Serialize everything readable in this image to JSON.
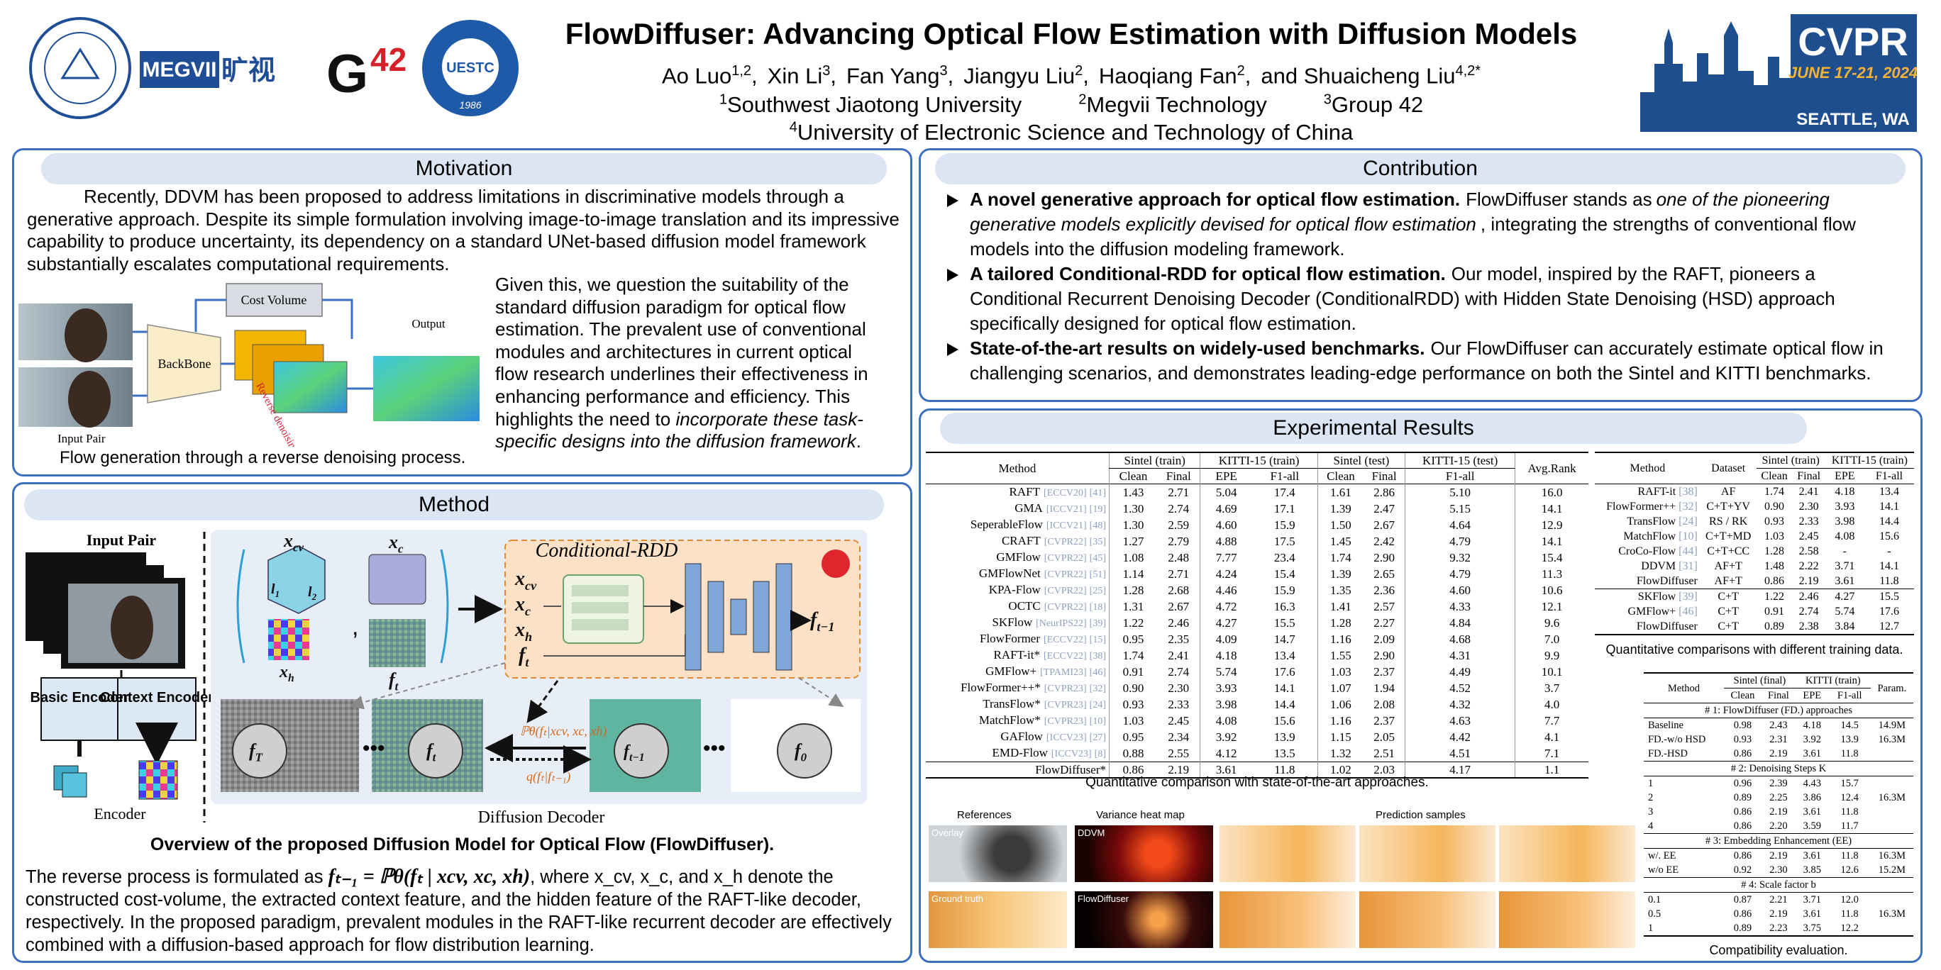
{
  "header": {
    "title": "FlowDiffuser: Advancing Optical Flow Estimation with Diffusion Models",
    "authors": [
      {
        "name": "Ao Luo",
        "sup": "1,2",
        "sep": ","
      },
      {
        "name": "Xin Li",
        "sup": "3",
        "sep": ","
      },
      {
        "name": "Fan Yang",
        "sup": "3",
        "sep": ","
      },
      {
        "name": "Jiangyu Liu",
        "sup": "2",
        "sep": ","
      },
      {
        "name": "Haoqiang Fan",
        "sup": "2",
        "sep": ","
      },
      {
        "name": "and Shuaicheng Liu",
        "sup": "4,2*"
      }
    ],
    "affiliations": [
      {
        "sup": "1",
        "name": "Southwest Jiaotong University"
      },
      {
        "sup": "2",
        "name": "Megvii Technology"
      },
      {
        "sup": "3",
        "name": "Group 42"
      },
      {
        "sup": "4",
        "name": "University of Electronic Science and Technology of China"
      }
    ],
    "logos": {
      "megvii": "MEGVII",
      "megvii_cn": "旷视",
      "g42_g": "G",
      "g42_num": "42",
      "uestc": "UESTC",
      "uestc_year": "1986",
      "cvpr": "CVPR",
      "cvpr_date": "JUNE 17-21, 2024",
      "cvpr_place": "SEATTLE, WA"
    }
  },
  "motivation": {
    "title": "Motivation",
    "para1": "Recently, DDVM has been proposed to address limitations in discriminative models through a generative approach. Despite its simple formulation involving image-to-image translation and its impressive capability to produce uncertainty, its dependency on a standard UNet-based diffusion model framework substantially escalates computational requirements.",
    "para2": [
      "Given this, we question the suitability of the standard diffusion paradigm for optical flow estimation. The prevalent use of conventional modules and architectures in current optical flow research underlines their effectiveness in enhancing performance and efficiency. This highlights the need to",
      "incorporate these task-specific designs into the diffusion framework",
      "."
    ],
    "figure": {
      "cost_volume": "Cost Volume",
      "backbone": "BackBone",
      "output": "Output",
      "input_pair": "Input Pair",
      "process": "Reverse denoising process"
    },
    "caption": "Flow generation through a reverse denoising process."
  },
  "contribution": {
    "title": "Contribution",
    "bullets": [
      {
        "bold": "A novel generative approach for optical flow estimation.",
        "text": [
          "FlowDiffuser stands as",
          "one of the pioneering generative models explicitly devised for optical flow estimation",
          ", integrating the strengths of conventional flow models into the diffusion modeling framework."
        ]
      },
      {
        "bold": "A tailored Conditional-RDD for optical flow estimation.",
        "text": [
          "Our model, inspired by the RAFT, pioneers a Conditional Recurrent Denoising Decoder (ConditionalRDD) with Hidden State Denoising (HSD) approach specifically designed for optical flow estimation."
        ]
      },
      {
        "bold": "State-of-the-art results on widely-used benchmarks.",
        "text": [
          "Our FlowDiffuser can accurately estimate optical flow in challenging scenarios, and demonstrates leading-edge performance on both the Sintel and KITTI benchmarks."
        ]
      }
    ]
  },
  "method": {
    "title": "Method",
    "figure": {
      "input_pair": "Input Pair",
      "basic_encoder": "Basic Encoder",
      "context_encoder": "Context Encoder",
      "encoder": "Encoder",
      "decoder": "Diffusion Decoder",
      "rdd": "Conditional-RDD",
      "symbols": {
        "xcv": {
          "main": "x",
          "sub": "cv"
        },
        "xc": {
          "main": "x",
          "sub": "c"
        },
        "xh": {
          "main": "x",
          "sub": "h"
        },
        "ft": {
          "main": "f",
          "sub": "t"
        },
        "ft1": {
          "main": "f",
          "sub": "t−1"
        },
        "fT": {
          "main": "f",
          "sub": "T"
        },
        "f0": {
          "main": "f",
          "sub": "0"
        },
        "l1": {
          "main": "l",
          "sub": "1"
        },
        "l2": {
          "main": "l",
          "sub": "2"
        }
      },
      "p_theta": "ℙθ(fₜ|xcv, xc, xh)",
      "q": "q(fₜ|fₜ₋₁)"
    },
    "caption": "Overview of the proposed Diffusion Model for Optical Flow (FlowDiffuser).",
    "para": [
      "The reverse process is formulated as",
      "fₜ₋₁ = ℙθ(fₜ | xcv, xc, xh)",
      ", where x_cv, x_c, and x_h denote the constructed cost-volume, the extracted context feature, and the hidden feature of the RAFT-like decoder, respectively. In the proposed paradigm, prevalent modules in the RAFT-like recurrent decoder are effectively combined with a diffusion-based approach for flow distribution learning."
    ]
  },
  "results": {
    "title": "Experimental Results",
    "main_table": {
      "method_header": "Method",
      "rank_header": "Avg.Rank",
      "groups": [
        {
          "name": "Sintel (train)",
          "cols": [
            "Clean",
            "Final"
          ]
        },
        {
          "name": "KITTI-15 (train)",
          "cols": [
            "EPE",
            "F1-all"
          ]
        },
        {
          "name": "Sintel (test)",
          "cols": [
            "Clean",
            "Final"
          ]
        },
        {
          "name": "KITTI-15 (test)",
          "cols": [
            "F1-all"
          ]
        }
      ],
      "rows": [
        {
          "method": "RAFT",
          "venue": "[ECCV20]",
          "ref": "[41]",
          "values": [
            "1.43",
            "2.71",
            "5.04",
            "17.4",
            "1.61",
            "2.86",
            "5.10",
            "16.0"
          ]
        },
        {
          "method": "GMA",
          "venue": "[ICCV21]",
          "ref": "[19]",
          "values": [
            "1.30",
            "2.74",
            "4.69",
            "17.1",
            "1.39",
            "2.47",
            "5.15",
            "14.1"
          ]
        },
        {
          "method": "SeperableFlow",
          "venue": "[ICCV21]",
          "ref": "[48]",
          "values": [
            "1.30",
            "2.59",
            "4.60",
            "15.9",
            "1.50",
            "2.67",
            "4.64",
            "12.9"
          ]
        },
        {
          "method": "CRAFT",
          "venue": "[CVPR22]",
          "ref": "[35]",
          "values": [
            "1.27",
            "2.79",
            "4.88",
            "17.5",
            "1.45",
            "2.42",
            "4.79",
            "14.1"
          ]
        },
        {
          "method": "GMFlow",
          "venue": "[CVPR22]",
          "ref": "[45]",
          "values": [
            "1.08",
            "2.48",
            "7.77",
            "23.4",
            "1.74",
            "2.90",
            "9.32",
            "15.4"
          ]
        },
        {
          "method": "GMFlowNet",
          "venue": "[CVPR22]",
          "ref": "[51]",
          "values": [
            "1.14",
            "2.71",
            "4.24",
            "15.4",
            "1.39",
            "2.65",
            "4.79",
            "11.3"
          ]
        },
        {
          "method": "KPA-Flow",
          "venue": "[CVPR22]",
          "ref": "[25]",
          "values": [
            "1.28",
            "2.68",
            "4.46",
            "15.9",
            "1.35",
            "2.36",
            "4.60",
            "10.6"
          ]
        },
        {
          "method": "OCTC",
          "venue": "[CVPR22]",
          "ref": "[18]",
          "values": [
            "1.31",
            "2.67",
            "4.72",
            "16.3",
            "1.41",
            "2.57",
            "4.33",
            "12.1"
          ]
        },
        {
          "method": "SKFlow",
          "venue": "[NeurIPS22]",
          "ref": "[39]",
          "values": [
            "1.22",
            "2.46",
            "4.27",
            "15.5",
            "1.28",
            "2.27",
            "4.84",
            "9.6"
          ]
        },
        {
          "method": "FlowFormer",
          "venue": "[ECCV22]",
          "ref": "[15]",
          "values": [
            "0.95",
            "2.35",
            "4.09",
            "14.7",
            "1.16",
            "2.09",
            "4.68",
            "7.0"
          ]
        },
        {
          "method": "RAFT-it*",
          "venue": "[ECCV22]",
          "ref": "[38]",
          "values": [
            "1.74",
            "2.41",
            "4.18",
            "13.4",
            "1.55",
            "2.90",
            "4.31",
            "9.9"
          ]
        },
        {
          "method": "GMFlow+",
          "venue": "[TPAMI23]",
          "ref": "[46]",
          "values": [
            "0.91",
            "2.74",
            "5.74",
            "17.6",
            "1.03",
            "2.37",
            "4.49",
            "10.1"
          ]
        },
        {
          "method": "FlowFormer++*",
          "venue": "[CVPR23]",
          "ref": "[32]",
          "values": [
            "0.90",
            "2.30",
            "3.93",
            "14.1",
            "1.07",
            "1.94",
            "4.52",
            "3.7"
          ]
        },
        {
          "method": "TransFlow*",
          "venue": "[CVPR23]",
          "ref": "[24]",
          "values": [
            "0.93",
            "2.33",
            "3.98",
            "14.4",
            "1.06",
            "2.08",
            "4.32",
            "4.0"
          ]
        },
        {
          "method": "MatchFlow*",
          "venue": "[CVPR23]",
          "ref": "[10]",
          "values": [
            "1.03",
            "2.45",
            "4.08",
            "15.6",
            "1.16",
            "2.37",
            "4.63",
            "7.7"
          ]
        },
        {
          "method": "GAFlow",
          "venue": "[ICCV23]",
          "ref": "[27]",
          "values": [
            "0.95",
            "2.34",
            "3.92",
            "13.9",
            "1.15",
            "2.05",
            "4.42",
            "4.1"
          ]
        },
        {
          "method": "EMD-Flow",
          "venue": "[ICCV23]",
          "ref": "[8]",
          "values": [
            "0.88",
            "2.55",
            "4.12",
            "13.5",
            "1.32",
            "2.51",
            "4.51",
            "7.1"
          ]
        },
        {
          "method": "FlowDiffuser*",
          "values": [
            "0.86",
            "2.19",
            "3.61",
            "11.8",
            "1.02",
            "2.03",
            "4.17",
            "1.1"
          ],
          "bold": true
        }
      ],
      "caption": "Quantitative comparison with state-of-the-art approaches."
    },
    "samples": {
      "references": "References",
      "variance": "Variance heat map",
      "predictions": "Prediction samples",
      "overlay": "Overlay",
      "ddvm": "DDVM",
      "ground_truth": "Ground truth",
      "flowdiffuser": "FlowDiffuser"
    },
    "training_table": {
      "method_header": "Method",
      "dataset_header": "Dataset",
      "groups": [
        {
          "name": "Sintel (train)",
          "cols": [
            "Clean",
            "Final"
          ]
        },
        {
          "name": "KITTI-15 (train)",
          "cols": [
            "EPE",
            "F1-all"
          ]
        }
      ],
      "row_groups": [
        [
          {
            "method": "RAFT-it",
            "ref": "[38]",
            "dataset": "AF",
            "values": [
              "1.74",
              "2.41",
              "4.18",
              "13.4"
            ]
          },
          {
            "method": "FlowFormer++",
            "ref": "[32]",
            "dataset": "C+T+YV",
            "values": [
              "0.90",
              "2.30",
              "3.93",
              "14.1"
            ]
          },
          {
            "method": "TransFlow",
            "ref": "[24]",
            "dataset": "RS / RK",
            "values": [
              "0.93",
              "2.33",
              "3.98",
              "14.4"
            ]
          },
          {
            "method": "MatchFlow",
            "ref": "[10]",
            "dataset": "C+T+MD",
            "values": [
              "1.03",
              "2.45",
              "4.08",
              "15.6"
            ]
          },
          {
            "method": "CroCo-Flow",
            "ref": "[44]",
            "dataset": "C+T+CC",
            "values": [
              "1.28",
              "2.58",
              "-",
              "-"
            ]
          },
          {
            "method": "DDVM",
            "ref": "[31]",
            "dataset": "AF+T",
            "values": [
              "1.48",
              "2.22",
              "3.71",
              "14.1"
            ]
          },
          {
            "method": "FlowDiffuser",
            "dataset": "AF+T",
            "values": [
              "0.86",
              "2.19",
              "3.61",
              "11.8"
            ],
            "bold": true
          }
        ],
        [
          {
            "method": "SKFlow",
            "ref": "[39]",
            "dataset": "C+T",
            "values": [
              "1.22",
              "2.46",
              "4.27",
              "15.5"
            ]
          },
          {
            "method": "GMFlow+",
            "ref": "[46]",
            "dataset": "C+T",
            "values": [
              "0.91",
              "2.74",
              "5.74",
              "17.6"
            ]
          },
          {
            "method": "FlowDiffuser",
            "dataset": "C+T",
            "values": [
              "0.89",
              "2.38",
              "3.84",
              "12.7"
            ],
            "bold": true
          }
        ]
      ],
      "caption": "Quantitative comparisons with different training data."
    },
    "ablation_table": {
      "method_header": "Method",
      "param_header": "Param.",
      "groups": [
        {
          "name": "Sintel (final)",
          "cols": [
            "Clean",
            "Final"
          ]
        },
        {
          "name": "KITTI (train)",
          "cols": [
            "EPE",
            "F1-all"
          ]
        }
      ],
      "sections": [
        {
          "title": "# 1: FlowDiffuser (FD.) approaches",
          "rows": [
            {
              "label": "Baseline",
              "values": [
                "0.98",
                "2.43",
                "4.18",
                "14.5"
              ],
              "param": "14.9M"
            },
            {
              "label": "FD.-w/o HSD",
              "values": [
                "0.93",
                "2.31",
                "3.92",
                "13.9"
              ],
              "param": "16.3M"
            },
            {
              "label": "FD.-HSD",
              "values": [
                "0.86",
                "2.19",
                "3.61",
                "11.8"
              ]
            }
          ]
        },
        {
          "title": "# 2: Denoising Steps K",
          "rows": [
            {
              "label": "1",
              "values": [
                "0.96",
                "2.39",
                "4.43",
                "15.7"
              ]
            },
            {
              "label": "2",
              "values": [
                "0.89",
                "2.25",
                "3.86",
                "12.4"
              ],
              "param": "16.3M"
            },
            {
              "label": "3",
              "values": [
                "0.86",
                "2.19",
                "3.61",
                "11.8"
              ]
            },
            {
              "label": "4",
              "values": [
                "0.86",
                "2.20",
                "3.59",
                "11.7"
              ]
            }
          ]
        },
        {
          "title": "# 3: Embedding Enhancement (EE)",
          "rows": [
            {
              "label": "w/. EE",
              "values": [
                "0.86",
                "2.19",
                "3.61",
                "11.8"
              ],
              "param": "16.3M"
            },
            {
              "label": "w/o EE",
              "values": [
                "0.92",
                "2.30",
                "3.85",
                "12.6"
              ],
              "param": "15.2M"
            }
          ]
        },
        {
          "title": "# 4: Scale factor b",
          "rows": [
            {
              "label": "0.1",
              "values": [
                "0.87",
                "2.21",
                "3.71",
                "12.0"
              ]
            },
            {
              "label": "0.5",
              "values": [
                "0.86",
                "2.19",
                "3.61",
                "11.8"
              ],
              "param": "16.3M"
            },
            {
              "label": "1",
              "values": [
                "0.89",
                "2.23",
                "3.75",
                "12.2"
              ]
            }
          ]
        }
      ],
      "caption": "Compatibility evaluation."
    }
  }
}
